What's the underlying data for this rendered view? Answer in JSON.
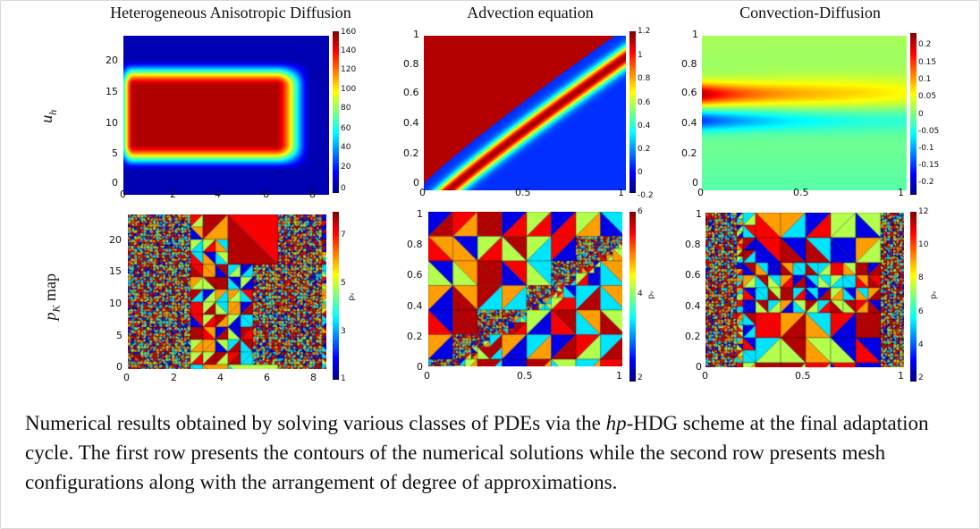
{
  "columns": [
    {
      "title": "Heterogeneous Anisotropic Diffusion"
    },
    {
      "title": "Advection equation"
    },
    {
      "title": "Convection-Diffusion"
    }
  ],
  "rows": [
    {
      "label": "uh",
      "label_main": "u",
      "label_sub": "h"
    },
    {
      "label": "pK map",
      "label_main": "p",
      "label_sub": "K",
      "label_rest": " map"
    }
  ],
  "axes": {
    "diffusion_x": [
      "0",
      "2",
      "4",
      "6",
      "8"
    ],
    "diffusion_y": [
      "0",
      "5",
      "10",
      "15",
      "20"
    ],
    "unit_x": [
      "0",
      "0.5",
      "1"
    ],
    "unit_y": [
      "0",
      "0.2",
      "0.4",
      "0.6",
      "0.8",
      "1"
    ]
  },
  "colorbars": {
    "diffusion_solution": [
      "160",
      "140",
      "120",
      "100",
      "80",
      "60",
      "40",
      "20",
      "0"
    ],
    "advection_solution": [
      "1.2",
      "1",
      "0.8",
      "0.6",
      "0.4",
      "0.2",
      "0",
      "-0.2"
    ],
    "convection_solution": [
      "0.2",
      "0.15",
      "0.1",
      "0.05",
      "0",
      "-0.05",
      "-0.1",
      "-0.15",
      "-0.2"
    ],
    "diffusion_p": [
      "7",
      "5",
      "3",
      "1"
    ],
    "advection_p": [
      "6",
      "4",
      "2"
    ],
    "convection_p": [
      "12",
      "10",
      "8",
      "6",
      "4",
      "2"
    ],
    "p_label": "pᵥ"
  },
  "caption": {
    "part1": "Numerical results obtained by solving various classes of PDEs via the ",
    "italic": "hp",
    "part2": "-HDG scheme at the final adaptation cycle. The first row presents the contours of the numerical solutions while the second row presents mesh configurations along with the arrangement of degree of approximations."
  }
}
